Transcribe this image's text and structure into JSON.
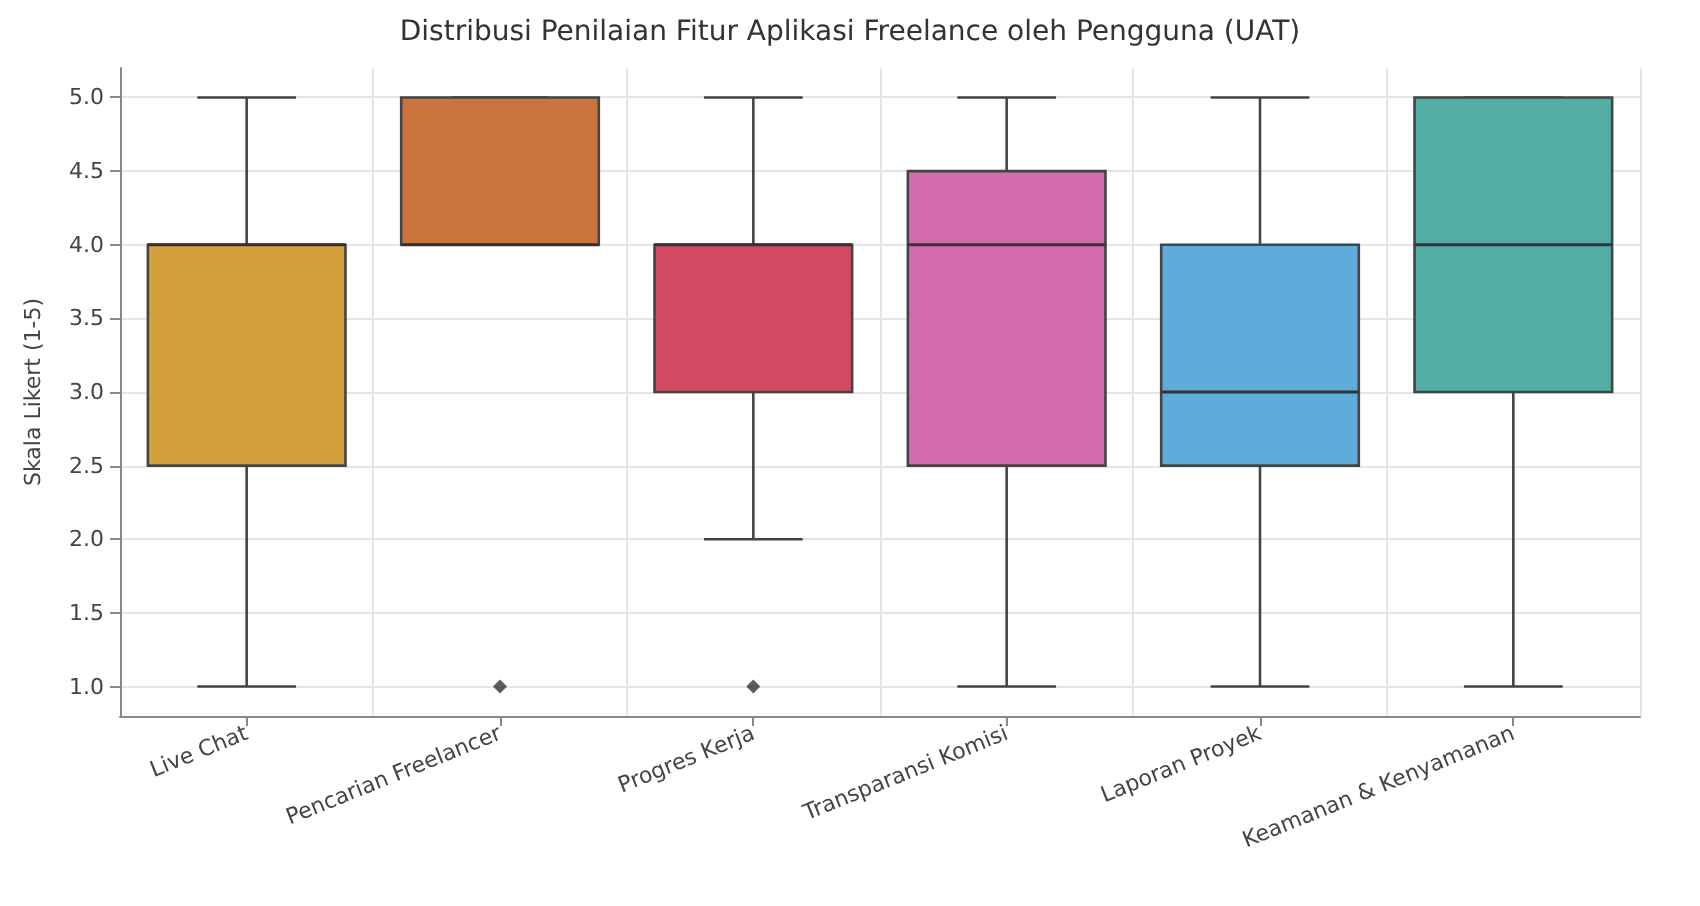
{
  "chart_data": {
    "type": "box",
    "title": "Distribusi Penilaian Fitur Aplikasi Freelance oleh Pengguna (UAT)",
    "ylabel": "Skala Likert (1-5)",
    "categories": [
      "Live Chat",
      "Pencarian Freelancer",
      "Progres Kerja",
      "Transparansi Komisi",
      "Laporan Proyek",
      "Keamanan & Kenyamanan"
    ],
    "boxes": [
      {
        "low": 1,
        "q1": 2.5,
        "median": 4,
        "q3": 4,
        "high": 5
      },
      {
        "low": 4,
        "q1": 4,
        "median": 4,
        "q3": 5,
        "high": 5,
        "outliers": [
          1
        ]
      },
      {
        "low": 2,
        "q1": 3,
        "median": 4,
        "q3": 4,
        "high": 5,
        "outliers": [
          1
        ]
      },
      {
        "low": 1,
        "q1": 2.5,
        "median": 4,
        "q3": 4.5,
        "high": 5
      },
      {
        "low": 1,
        "q1": 2.5,
        "median": 3,
        "q3": 4,
        "high": 5
      },
      {
        "low": 1,
        "q1": 3,
        "median": 4,
        "q3": 5,
        "high": 5
      }
    ],
    "colors": [
      "#d4a03c",
      "#cc7440",
      "#d04b62",
      "#d46ab0",
      "#5eacdc",
      "#52aea4"
    ],
    "ylim": [
      0.8,
      5.2
    ],
    "yticks": [
      {
        "value": 1,
        "label": "1.0"
      },
      1.5,
      {
        "value": 2,
        "label": "2.0"
      },
      2.5,
      {
        "value": 3,
        "label": "3.0"
      },
      3.5,
      {
        "value": 4,
        "label": "4.0"
      },
      4.5,
      {
        "value": 5,
        "label": "5.0"
      }
    ],
    "grid": true,
    "marker": "diamond"
  }
}
